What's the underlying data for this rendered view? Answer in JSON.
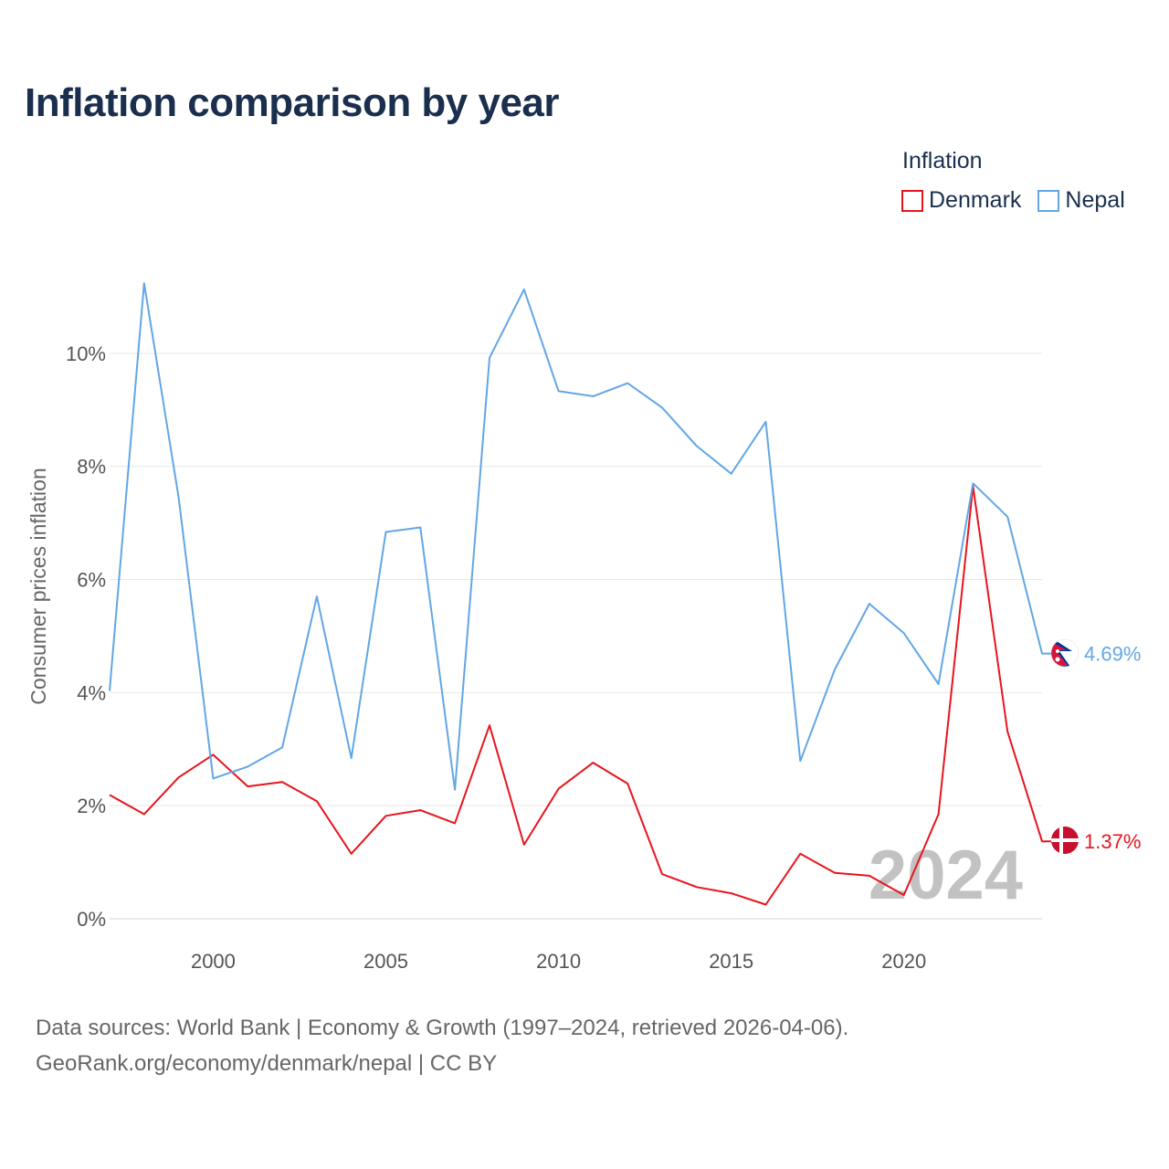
{
  "title": "Inflation comparison by year",
  "legend": {
    "title": "Inflation",
    "items": [
      {
        "name": "Denmark",
        "color": "#e8141c"
      },
      {
        "name": "Nepal",
        "color": "#62a6e6"
      }
    ]
  },
  "footer": {
    "line1": "Data sources: World Bank | Economy & Growth (1997–2024, retrieved 2026-04-06).",
    "line2": "GeoRank.org/economy/denmark/nepal | CC BY"
  },
  "chart_data": {
    "type": "line",
    "title": "Inflation comparison by year",
    "xlabel": "",
    "ylabel": "Consumer prices inflation",
    "x": [
      1997,
      1998,
      1999,
      2000,
      2001,
      2002,
      2003,
      2004,
      2005,
      2006,
      2007,
      2008,
      2009,
      2010,
      2011,
      2012,
      2013,
      2014,
      2015,
      2016,
      2017,
      2018,
      2019,
      2020,
      2021,
      2022,
      2023,
      2024
    ],
    "series": [
      {
        "name": "Denmark",
        "color": "#e8141c",
        "end_label": "1.37%",
        "values": [
          2.19,
          1.85,
          2.5,
          2.9,
          2.34,
          2.42,
          2.08,
          1.15,
          1.82,
          1.92,
          1.69,
          3.42,
          1.31,
          2.3,
          2.76,
          2.39,
          0.79,
          0.56,
          0.45,
          0.25,
          1.15,
          0.81,
          0.76,
          0.42,
          1.85,
          7.65,
          3.31,
          1.37
        ]
      },
      {
        "name": "Nepal",
        "color": "#62a6e6",
        "end_label": "4.69%",
        "values": [
          4.03,
          11.24,
          7.45,
          2.48,
          2.69,
          3.03,
          5.7,
          2.84,
          6.84,
          6.92,
          2.28,
          9.92,
          11.13,
          9.33,
          9.24,
          9.47,
          9.04,
          8.36,
          7.87,
          8.79,
          2.79,
          4.41,
          5.57,
          5.05,
          4.15,
          7.7,
          7.11,
          4.69
        ]
      }
    ],
    "x_ticks": [
      2000,
      2005,
      2010,
      2015,
      2020
    ],
    "x_tick_labels": [
      "2000",
      "2005",
      "2010",
      "2015",
      "2020"
    ],
    "y_ticks": [
      0,
      2,
      4,
      6,
      8,
      10
    ],
    "y_tick_labels": [
      "0%",
      "2%",
      "4%",
      "6%",
      "8%",
      "10%"
    ],
    "xlim": [
      1997,
      2024
    ],
    "ylim": [
      0,
      12
    ],
    "grid": true,
    "legend_position": "top-right",
    "year_label": "2024"
  }
}
